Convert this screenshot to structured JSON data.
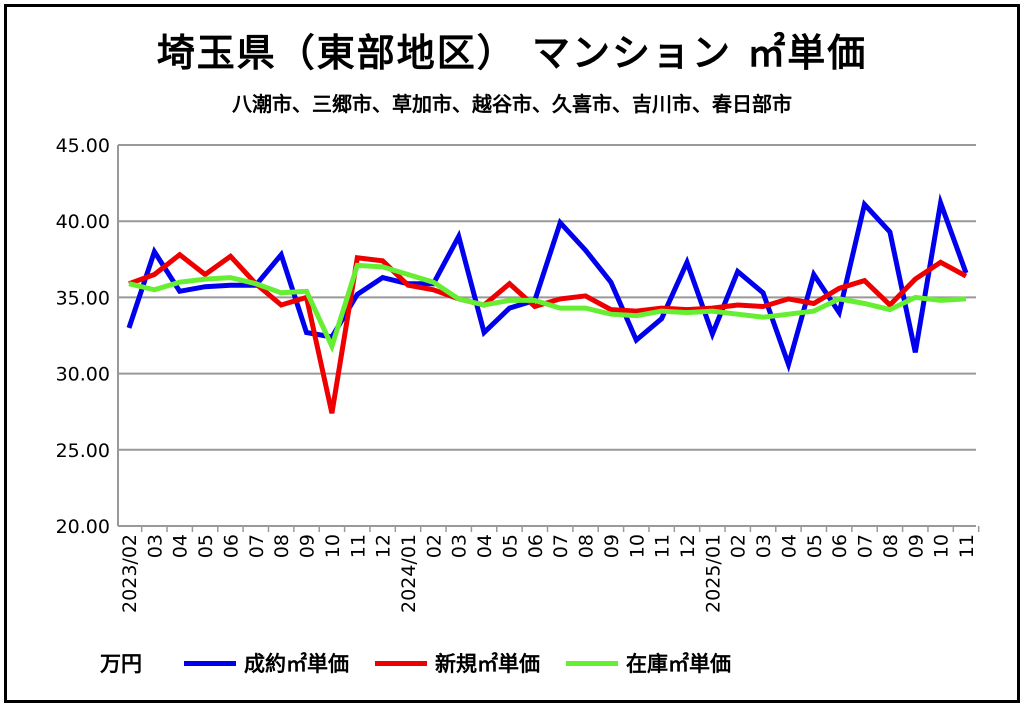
{
  "title": "埼玉県（東部地区） マンション ㎡単価",
  "subtitle": "八潮市、三郷市、草加市、越谷市、久喜市、吉川市、春日部市",
  "chart_data": {
    "type": "line",
    "title": "埼玉県（東部地区） マンション ㎡単価",
    "ylabel": "万円",
    "ylim": [
      20,
      45
    ],
    "yticks": [
      "20.00",
      "25.00",
      "30.00",
      "35.00",
      "40.00",
      "45.00"
    ],
    "grid": true,
    "legend_position": "bottom",
    "categories": [
      "2023/02",
      "03",
      "04",
      "05",
      "06",
      "07",
      "08",
      "09",
      "10",
      "11",
      "12",
      "2024/01",
      "02",
      "03",
      "04",
      "05",
      "06",
      "07",
      "08",
      "09",
      "10",
      "11",
      "12",
      "2025/01",
      "02",
      "03",
      "04",
      "05",
      "06",
      "07",
      "08",
      "09",
      "10",
      "11"
    ],
    "series": [
      {
        "name": "成約㎡単価",
        "color": "#0000ee",
        "values": [
          33.0,
          38.0,
          35.4,
          35.7,
          35.8,
          35.8,
          37.8,
          32.7,
          32.4,
          35.2,
          36.3,
          35.9,
          35.9,
          39.0,
          32.7,
          34.3,
          34.8,
          39.9,
          38.1,
          36.0,
          32.2,
          33.6,
          37.3,
          32.6,
          36.7,
          35.3,
          30.6,
          36.5,
          34.0,
          41.1,
          39.3,
          31.4,
          41.2,
          36.6
        ]
      },
      {
        "name": "新規㎡単価",
        "color": "#ee0000",
        "values": [
          35.9,
          36.5,
          37.8,
          36.5,
          37.7,
          35.9,
          34.5,
          35.0,
          27.4,
          37.6,
          37.4,
          35.8,
          35.5,
          34.9,
          34.5,
          35.9,
          34.4,
          34.9,
          35.1,
          34.2,
          34.1,
          34.3,
          34.2,
          34.3,
          34.5,
          34.4,
          34.9,
          34.6,
          35.6,
          36.1,
          34.5,
          36.2,
          37.3,
          36.4
        ]
      },
      {
        "name": "在庫㎡単価",
        "color": "#66ee33",
        "values": [
          35.9,
          35.5,
          36.0,
          36.2,
          36.3,
          35.9,
          35.3,
          35.4,
          31.8,
          37.1,
          37.0,
          36.5,
          36.0,
          34.9,
          34.5,
          34.8,
          34.8,
          34.3,
          34.3,
          33.9,
          33.8,
          34.1,
          34.0,
          34.1,
          33.9,
          33.7,
          33.9,
          34.1,
          34.9,
          34.6,
          34.2,
          35.0,
          34.8,
          34.9
        ]
      }
    ]
  }
}
